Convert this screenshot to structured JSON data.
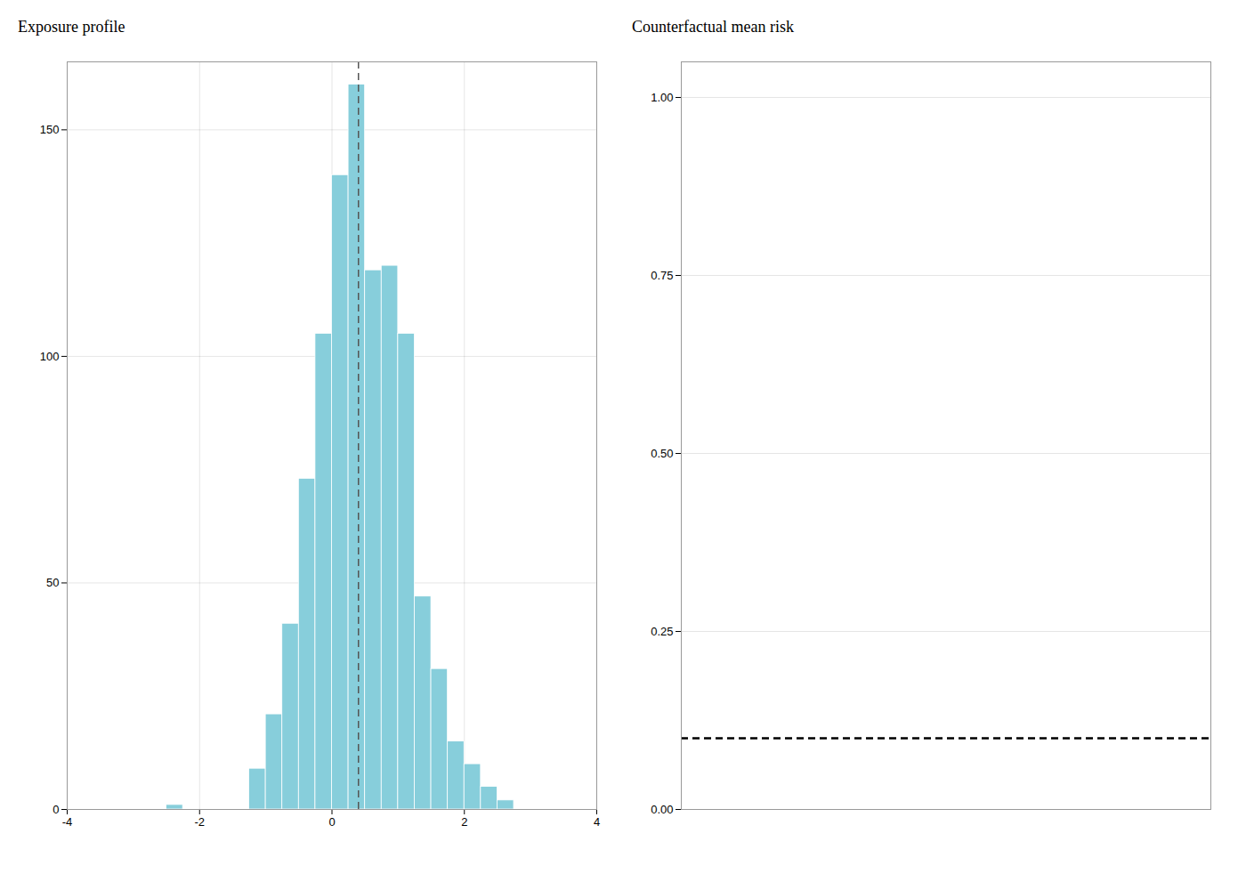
{
  "chart_data": [
    {
      "type": "histogram",
      "title": "Exposure profile",
      "bins": [
        -3.0,
        -2.75,
        -2.5,
        -2.25,
        -2.0,
        -1.75,
        -1.5,
        -1.25,
        -1.0,
        -0.75,
        -0.5,
        -0.25,
        0.0,
        0.25,
        0.5,
        0.75,
        1.0,
        1.25,
        1.5,
        1.75,
        2.0,
        2.25,
        2.5,
        2.75
      ],
      "values": [
        0,
        0,
        1,
        0,
        0,
        0,
        0,
        9,
        21,
        41,
        73,
        105,
        140,
        160,
        119,
        120,
        105,
        47,
        31,
        15,
        10,
        5,
        2
      ],
      "color": "#87CEDB",
      "xlim": [
        -4,
        4
      ],
      "xticks": [
        -4,
        -2,
        0,
        2,
        4
      ],
      "ylim": [
        0,
        165
      ],
      "yticks": [
        0,
        50,
        100,
        150
      ],
      "grid": true,
      "reference_lines": [
        {
          "x": 0.4,
          "color": "#555555",
          "line_style": "dashed"
        }
      ]
    },
    {
      "type": "line",
      "title": "Counterfactual mean risk",
      "xlim": [
        -4,
        4
      ],
      "xticks": [],
      "ylim": [
        0.0,
        1.05
      ],
      "yticks": [
        {
          "value": 0.0,
          "label": "0.00"
        },
        {
          "value": 0.25,
          "label": "0.25"
        },
        {
          "value": 0.5,
          "label": "0.50"
        },
        {
          "value": 0.75,
          "label": "0.75"
        },
        {
          "value": 1.0,
          "label": "1.00"
        }
      ],
      "tick_labels": "y",
      "grid": true,
      "reference_lines": [
        {
          "y": 0.1,
          "color": "#000000",
          "line_style": "dashed"
        }
      ]
    }
  ]
}
